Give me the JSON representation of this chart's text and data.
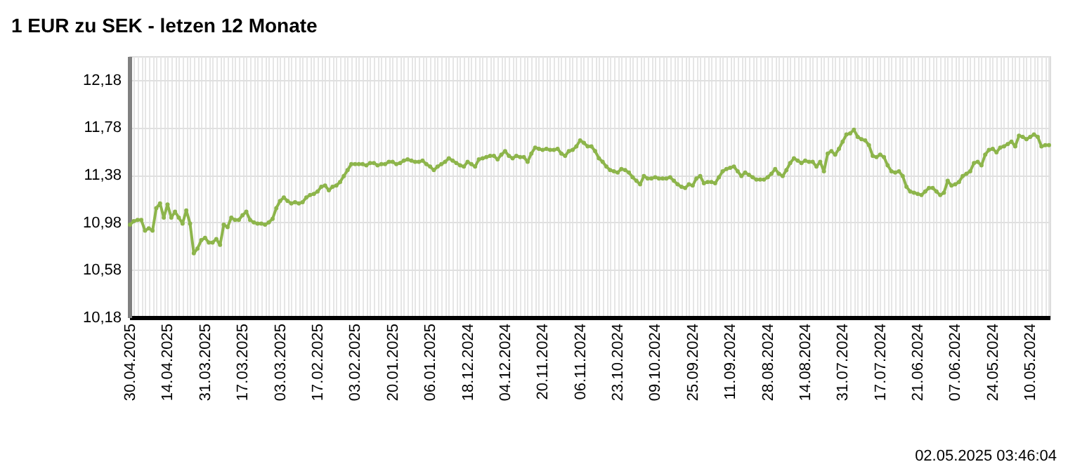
{
  "chart_data": {
    "type": "line",
    "title": "1 EUR zu SEK - letzen 12 Monate",
    "annotations": [
      "02.05.2025 03:46:04"
    ],
    "categories": [
      "30.04.2025",
      null,
      null,
      null,
      null,
      null,
      null,
      null,
      null,
      null,
      "14.04.2025",
      null,
      null,
      null,
      null,
      null,
      null,
      null,
      null,
      null,
      "31.03.2025",
      null,
      null,
      null,
      null,
      null,
      null,
      null,
      null,
      null,
      "17.03.2025",
      null,
      null,
      null,
      null,
      null,
      null,
      null,
      null,
      null,
      "03.03.2025",
      null,
      null,
      null,
      null,
      null,
      null,
      null,
      null,
      null,
      "17.02.2025",
      null,
      null,
      null,
      null,
      null,
      null,
      null,
      null,
      null,
      "03.02.2025",
      null,
      null,
      null,
      null,
      null,
      null,
      null,
      null,
      null,
      "20.01.2025",
      null,
      null,
      null,
      null,
      null,
      null,
      null,
      null,
      null,
      "06.01.2025",
      null,
      null,
      null,
      null,
      null,
      null,
      null,
      null,
      null,
      "18.12.2024",
      null,
      null,
      null,
      null,
      null,
      null,
      null,
      null,
      null,
      "04.12.2024",
      null,
      null,
      null,
      null,
      null,
      null,
      null,
      null,
      null,
      "20.11.2024",
      null,
      null,
      null,
      null,
      null,
      null,
      null,
      null,
      null,
      "06.11.2024",
      null,
      null,
      null,
      null,
      null,
      null,
      null,
      null,
      null,
      "23.10.2024",
      null,
      null,
      null,
      null,
      null,
      null,
      null,
      null,
      null,
      "09.10.2024",
      null,
      null,
      null,
      null,
      null,
      null,
      null,
      null,
      null,
      "25.09.2024",
      null,
      null,
      null,
      null,
      null,
      null,
      null,
      null,
      null,
      "11.09.2024",
      null,
      null,
      null,
      null,
      null,
      null,
      null,
      null,
      null,
      "28.08.2024",
      null,
      null,
      null,
      null,
      null,
      null,
      null,
      null,
      null,
      "14.08.2024",
      null,
      null,
      null,
      null,
      null,
      null,
      null,
      null,
      null,
      "31.07.2024",
      null,
      null,
      null,
      null,
      null,
      null,
      null,
      null,
      null,
      "17.07.2024",
      null,
      null,
      null,
      null,
      null,
      null,
      null,
      null,
      null,
      "21.06.2024",
      null,
      null,
      null,
      null,
      null,
      null,
      null,
      null,
      null,
      "07.06.2024",
      null,
      null,
      null,
      null,
      null,
      null,
      null,
      null,
      null,
      "24.05.2024",
      null,
      null,
      null,
      null,
      null,
      null,
      null,
      null,
      null,
      "10.05.2024",
      null,
      null,
      null,
      null,
      null
    ],
    "series": [
      {
        "color": "#8db54b",
        "values": [
          10.96,
          10.99,
          11.0,
          11.0,
          10.91,
          10.93,
          10.91,
          11.1,
          11.14,
          11.02,
          11.13,
          11.02,
          11.07,
          11.02,
          10.97,
          11.08,
          10.97,
          10.72,
          10.76,
          10.83,
          10.85,
          10.81,
          10.81,
          10.84,
          10.79,
          10.96,
          10.94,
          11.02,
          11.0,
          11.0,
          11.04,
          11.07,
          11.0,
          10.98,
          10.97,
          10.97,
          10.96,
          10.98,
          11.01,
          11.1,
          11.16,
          11.19,
          11.16,
          11.14,
          11.15,
          11.14,
          11.15,
          11.19,
          11.21,
          11.22,
          11.24,
          11.28,
          11.29,
          11.25,
          11.28,
          11.29,
          11.32,
          11.37,
          11.42,
          11.47,
          11.47,
          11.47,
          11.47,
          11.46,
          11.48,
          11.48,
          11.46,
          11.47,
          11.47,
          11.49,
          11.49,
          11.47,
          11.48,
          11.5,
          11.51,
          11.5,
          11.49,
          11.49,
          11.5,
          11.47,
          11.45,
          11.42,
          11.45,
          11.47,
          11.49,
          11.52,
          11.5,
          11.48,
          11.46,
          11.45,
          11.49,
          11.47,
          11.45,
          11.51,
          11.52,
          11.53,
          11.54,
          11.54,
          11.51,
          11.55,
          11.58,
          11.54,
          11.52,
          11.54,
          11.53,
          11.53,
          11.49,
          11.56,
          11.61,
          11.6,
          11.59,
          11.6,
          11.59,
          11.59,
          11.6,
          11.56,
          11.54,
          11.58,
          11.59,
          11.62,
          11.67,
          11.65,
          11.62,
          11.62,
          11.58,
          11.52,
          11.49,
          11.45,
          11.42,
          11.41,
          11.4,
          11.43,
          11.42,
          11.4,
          11.36,
          11.33,
          11.3,
          11.37,
          11.35,
          11.35,
          11.36,
          11.35,
          11.35,
          11.35,
          11.36,
          11.33,
          11.3,
          11.28,
          11.27,
          11.3,
          11.29,
          11.35,
          11.37,
          11.31,
          11.32,
          11.32,
          11.31,
          11.36,
          11.41,
          11.43,
          11.44,
          11.45,
          11.41,
          11.37,
          11.4,
          11.38,
          11.36,
          11.34,
          11.34,
          11.34,
          11.36,
          11.39,
          11.43,
          11.39,
          11.37,
          11.42,
          11.48,
          11.52,
          11.5,
          11.48,
          11.5,
          11.49,
          11.49,
          11.45,
          11.49,
          11.41,
          11.56,
          11.58,
          11.55,
          11.6,
          11.66,
          11.72,
          11.73,
          11.76,
          11.7,
          11.68,
          11.67,
          11.63,
          11.54,
          11.53,
          11.55,
          11.53,
          11.46,
          11.41,
          11.4,
          11.41,
          11.37,
          11.28,
          11.24,
          11.23,
          11.22,
          11.21,
          11.24,
          11.27,
          11.27,
          11.24,
          11.21,
          11.23,
          11.33,
          11.29,
          11.3,
          11.32,
          11.37,
          11.39,
          11.41,
          11.48,
          11.49,
          11.46,
          11.55,
          11.59,
          11.6,
          11.57,
          11.61,
          11.62,
          11.64,
          11.66,
          11.62,
          11.71,
          11.7,
          11.68,
          11.7,
          11.72,
          11.7,
          11.62,
          11.63,
          11.63
        ]
      }
    ],
    "ylim": [
      10.18,
      12.38
    ],
    "yticks": [
      {
        "value": 10.18,
        "label": "10,18"
      },
      {
        "value": 10.58,
        "label": "10,58"
      },
      {
        "value": 10.98,
        "label": "10,98"
      },
      {
        "value": 11.38,
        "label": "11,38"
      },
      {
        "value": 11.78,
        "label": "11,78"
      },
      {
        "value": 12.18,
        "label": "12,18"
      }
    ],
    "grid": true,
    "marker": "circle",
    "line_style": "solid"
  }
}
